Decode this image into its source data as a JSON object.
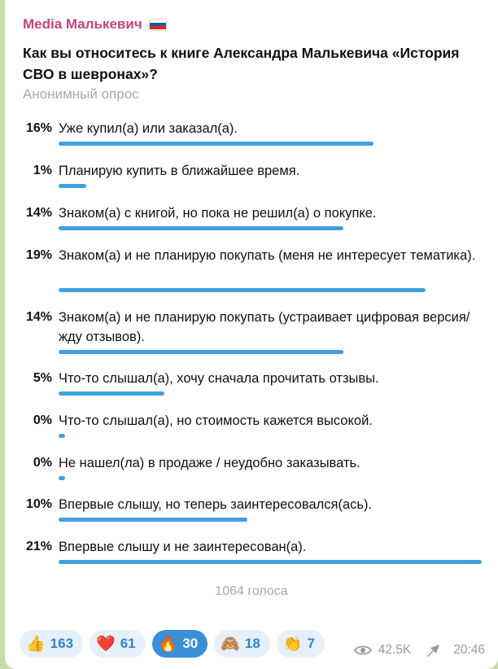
{
  "channel": {
    "name": "Media Малькевич",
    "flag": "flag-russia-icon"
  },
  "poll": {
    "question": "Как вы относитесь к книге Александра Малькевича «История СВО в шевронах»?",
    "type": "Анонимный опрос",
    "options": [
      {
        "percent": "16%",
        "fraction": 0.745,
        "text": "Уже купил(а) или заказал(а)."
      },
      {
        "percent": "1%",
        "fraction": 0.066,
        "text": "Планирую купить в ближайшее время."
      },
      {
        "percent": "14%",
        "fraction": 0.673,
        "text": "Знаком(а) с книгой, но пока не решил(а) о покупке."
      },
      {
        "percent": "19%",
        "fraction": 0.867,
        "text": "Знаком(а) и не планирую покупать (меня не интересует тематика)."
      },
      {
        "percent": "14%",
        "fraction": 0.673,
        "text": "Знаком(а) и не планирую покупать (устраивает цифровая версия/жду отзывов)."
      },
      {
        "percent": "5%",
        "fraction": 0.25,
        "text": "Что-то слышал(а), хочу сначала прочитать отзывы."
      },
      {
        "percent": "0%",
        "fraction": 0.015,
        "text": "Что-то слышал(а), но стоимость кажется высокой."
      },
      {
        "percent": "0%",
        "fraction": 0.015,
        "text": "Не нашел(ла) в продаже / неудобно заказывать."
      },
      {
        "percent": "10%",
        "fraction": 0.446,
        "text": "Впервые слышу, но теперь заинтересовался(ась)."
      },
      {
        "percent": "21%",
        "fraction": 1.0,
        "text": "Впервые слышу и не заинтересован(а)."
      }
    ],
    "votes": "1064 голоса"
  },
  "reactions": [
    {
      "emoji": "👍",
      "icon": "thumbs-up-icon",
      "count": "163",
      "active": false
    },
    {
      "emoji": "❤️",
      "icon": "heart-icon",
      "count": "61",
      "active": false
    },
    {
      "emoji": "🔥",
      "icon": "fire-icon",
      "count": "30",
      "active": true
    },
    {
      "emoji": "🙈",
      "icon": "see-no-evil-monkey-icon",
      "count": "18",
      "active": false
    },
    {
      "emoji": "👏",
      "icon": "clapping-hands-icon",
      "count": "7",
      "active": false
    }
  ],
  "meta": {
    "views": "42.5K",
    "time": "20:46"
  },
  "colors": {
    "accent": "#3fa0e0",
    "channel": "#c2457a",
    "background": "#c9dba8"
  }
}
